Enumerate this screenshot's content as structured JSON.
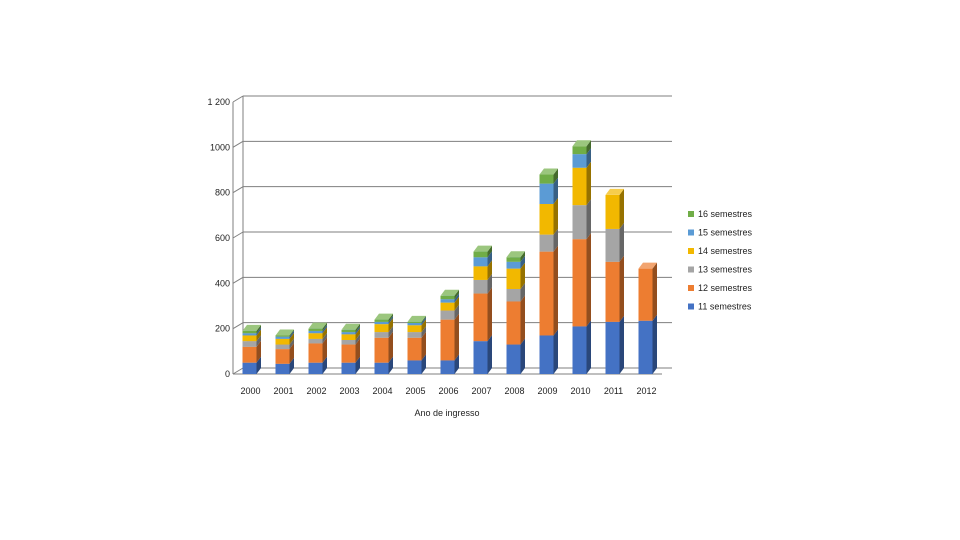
{
  "chart_data": {
    "type": "bar",
    "stacked": true,
    "style": "3d-column",
    "title": "",
    "xlabel": "Ano de ingresso",
    "ylabel": "",
    "ylim": [
      0,
      1200
    ],
    "yticks": [
      0,
      200,
      400,
      600,
      800,
      1000,
      1200
    ],
    "ytick_labels": [
      "0",
      "200",
      "400",
      "600",
      "800",
      "1000",
      "1 200"
    ],
    "grid": true,
    "legend_position": "right",
    "categories": [
      "2000",
      "2001",
      "2002",
      "2003",
      "2004",
      "2005",
      "2006",
      "2007",
      "2008",
      "2009",
      "2010",
      "2011",
      "2012"
    ],
    "series": [
      {
        "name": "11 semestres",
        "color": "#4472C4",
        "values": [
          50,
          45,
          50,
          50,
          50,
          60,
          60,
          145,
          130,
          170,
          210,
          230,
          235
        ]
      },
      {
        "name": "12 semestres",
        "color": "#ED7D31",
        "values": [
          70,
          65,
          85,
          80,
          110,
          100,
          180,
          210,
          190,
          370,
          385,
          265,
          230
        ]
      },
      {
        "name": "13 semestres",
        "color": "#A5A5A5",
        "values": [
          25,
          20,
          20,
          20,
          25,
          25,
          40,
          60,
          55,
          75,
          150,
          145,
          0
        ]
      },
      {
        "name": "14 semestres",
        "color": "#F2B800",
        "values": [
          25,
          25,
          25,
          25,
          35,
          30,
          35,
          60,
          90,
          135,
          165,
          150,
          0
        ]
      },
      {
        "name": "15 semestres",
        "color": "#5B9BD5",
        "values": [
          10,
          10,
          10,
          10,
          10,
          10,
          15,
          40,
          30,
          90,
          60,
          0,
          0
        ]
      },
      {
        "name": "16 semestres",
        "color": "#70AD47",
        "values": [
          10,
          5,
          10,
          10,
          10,
          5,
          15,
          25,
          20,
          40,
          35,
          0,
          0
        ]
      }
    ]
  }
}
